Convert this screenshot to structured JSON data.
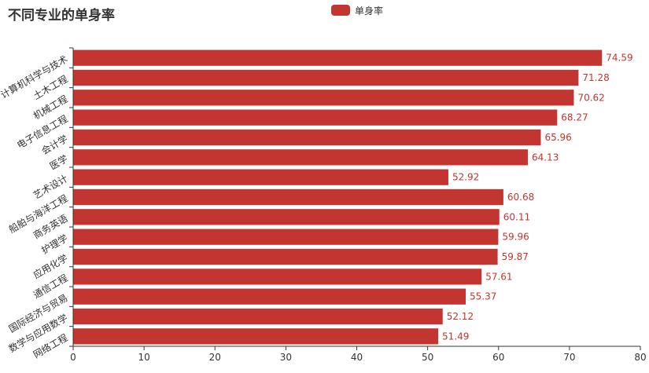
{
  "chart_data": {
    "type": "bar",
    "orientation": "horizontal",
    "title": "不同专业的单身率",
    "legend": {
      "labels": [
        "单身率"
      ],
      "placement": "top-center"
    },
    "categories": [
      "计算机科学与技术",
      "土木工程",
      "机械工程",
      "电子信息工程",
      "会计学",
      "医学",
      "艺术设计",
      "船舶与海洋工程",
      "商务英语",
      "护理学",
      "应用化学",
      "通信工程",
      "国际经济与贸易",
      "数学与应用数学",
      "网络工程"
    ],
    "series": [
      {
        "name": "单身率",
        "values": [
          74.59,
          71.28,
          70.62,
          68.27,
          65.96,
          64.13,
          52.92,
          60.68,
          60.11,
          59.96,
          59.87,
          57.61,
          55.37,
          52.12,
          51.49
        ]
      }
    ],
    "xlim": [
      0,
      80
    ],
    "x_ticks": [
      0,
      10,
      20,
      30,
      40,
      50,
      60,
      70,
      80
    ],
    "grid": false,
    "colors": {
      "bar": "#c23531",
      "label": "#c23531",
      "axis": "#333333",
      "text": "#333333"
    }
  }
}
